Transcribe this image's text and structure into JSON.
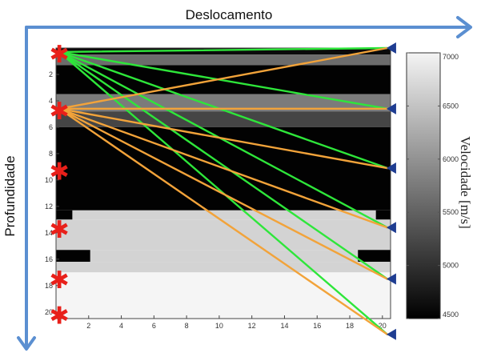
{
  "labels": {
    "horizontal_axis": "Deslocamento",
    "vertical_axis": "Profundidade",
    "colorbar": "Velocidade [m/s]"
  },
  "x_ticks": [
    "2",
    "4",
    "6",
    "8",
    "10",
    "12",
    "14",
    "16",
    "18",
    "20"
  ],
  "y_ticks": [
    "2",
    "4",
    "6",
    "8",
    "10",
    "12",
    "14",
    "16",
    "18",
    "20"
  ],
  "colorbar_ticks": [
    "7000",
    "6500",
    "6000",
    "5500",
    "5000",
    "4500"
  ],
  "colors": {
    "arrow": "#5b8fd1",
    "green_ray": "#2ee63a",
    "orange_ray": "#f2a33a",
    "source": "#e8201a",
    "receiver": "#1f3d91"
  },
  "icons": {
    "source": "asterisk",
    "receiver": "left-pointing triangle"
  },
  "chart_data": {
    "type": "heatmap",
    "xlim": [
      0,
      20.5
    ],
    "ylim": [
      20.5,
      0
    ],
    "velocity_range": [
      4500,
      7000
    ],
    "layers": [
      {
        "x0": 0,
        "x1": 20.5,
        "y0": 0,
        "y1": 0.5,
        "v": 4600
      },
      {
        "x0": 0,
        "x1": 20.5,
        "y0": 0.5,
        "y1": 1.3,
        "v": 5600
      },
      {
        "x0": 0,
        "x1": 20.5,
        "y0": 1.3,
        "y1": 3.5,
        "v": 4520
      },
      {
        "x0": 0,
        "x1": 20.5,
        "y0": 3.5,
        "y1": 4.8,
        "v": 5750
      },
      {
        "x0": 0,
        "x1": 20.5,
        "y0": 4.8,
        "y1": 6.0,
        "v": 5200
      },
      {
        "x0": 0,
        "x1": 20.5,
        "y0": 6.0,
        "y1": 12.3,
        "v": 4520
      },
      {
        "x0": 1,
        "x1": 19.6,
        "y0": 12.3,
        "y1": 13.0,
        "v": 6650
      },
      {
        "x0": 0,
        "x1": 1,
        "y0": 12.3,
        "y1": 13.0,
        "v": 4520
      },
      {
        "x0": 19.6,
        "x1": 20.5,
        "y0": 12.3,
        "y1": 13.0,
        "v": 4520
      },
      {
        "x0": 0,
        "x1": 20.5,
        "y0": 13.0,
        "y1": 15.3,
        "v": 6650
      },
      {
        "x0": 0,
        "x1": 2.1,
        "y0": 15.3,
        "y1": 16.2,
        "v": 4520
      },
      {
        "x0": 2.1,
        "x1": 18.5,
        "y0": 15.3,
        "y1": 16.2,
        "v": 6650
      },
      {
        "x0": 18.5,
        "x1": 20.5,
        "y0": 15.3,
        "y1": 16.2,
        "v": 4520
      },
      {
        "x0": 0,
        "x1": 20.5,
        "y0": 16.2,
        "y1": 17.0,
        "v": 6650
      },
      {
        "x0": 0,
        "x1": 20.5,
        "y0": 17.0,
        "y1": 20.5,
        "v": 7000
      }
    ],
    "sources": [
      {
        "x": 0.2,
        "y": 0.3
      },
      {
        "x": 0.2,
        "y": 4.6
      },
      {
        "x": 0.2,
        "y": 9.2
      },
      {
        "x": 0.2,
        "y": 13.6
      },
      {
        "x": 0.2,
        "y": 17.4
      },
      {
        "x": 0.2,
        "y": 20.1
      }
    ],
    "receivers": [
      {
        "x": 20.3,
        "y": 0
      },
      {
        "x": 20.3,
        "y": 4.6
      },
      {
        "x": 20.3,
        "y": 9.1
      },
      {
        "x": 20.3,
        "y": 13.6
      },
      {
        "x": 20.3,
        "y": 17.5
      },
      {
        "x": 20.3,
        "y": 21.7
      }
    ],
    "rays": [
      {
        "from": 0,
        "to": 0,
        "color": "green"
      },
      {
        "from": 0,
        "to": 1,
        "color": "green"
      },
      {
        "from": 0,
        "to": 2,
        "color": "green"
      },
      {
        "from": 0,
        "to": 3,
        "color": "green"
      },
      {
        "from": 0,
        "to": 4,
        "color": "green"
      },
      {
        "from": 0,
        "to": 5,
        "color": "green"
      },
      {
        "from": 1,
        "to": 0,
        "color": "orange"
      },
      {
        "from": 1,
        "to": 1,
        "color": "orange"
      },
      {
        "from": 1,
        "to": 2,
        "color": "orange"
      },
      {
        "from": 1,
        "to": 3,
        "color": "orange"
      },
      {
        "from": 1,
        "to": 4,
        "color": "orange"
      },
      {
        "from": 1,
        "to": 5,
        "color": "orange"
      }
    ]
  }
}
